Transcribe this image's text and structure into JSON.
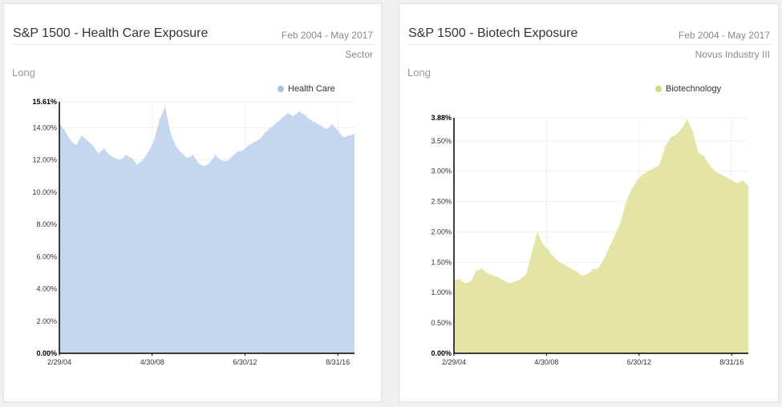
{
  "left_panel": {
    "title": "S&P 1500 - Health Care Exposure",
    "date_range": "Feb 2004 - May 2017",
    "classification": "Sector",
    "side": "Long"
  },
  "right_panel": {
    "title": "S&P 1500 - Biotech Exposure",
    "date_range": "Feb 2004 - May 2017",
    "classification": "Novus Industry III",
    "side": "Long"
  },
  "chart_data": [
    {
      "type": "area",
      "legend_placement": "top-right",
      "grid": true,
      "x_ticks": [
        "2/29/04",
        "4/30/08",
        "6/30/12",
        "8/31/16"
      ],
      "y_ticks": [
        "0.00%",
        "2.00%",
        "4.00%",
        "6.00%",
        "8.00%",
        "10.00%",
        "12.00%",
        "14.00%",
        "15.61%"
      ],
      "ylim": [
        0,
        15.61
      ],
      "xlim": [
        "2004-02",
        "2017-05"
      ],
      "series": [
        {
          "name": "Health Care",
          "color": "#c5d6ef",
          "legend_color": "#a9bfe3",
          "x": [
            "2004-02",
            "2004-05",
            "2004-08",
            "2004-11",
            "2005-02",
            "2005-05",
            "2005-08",
            "2005-11",
            "2006-02",
            "2006-05",
            "2006-08",
            "2006-11",
            "2007-02",
            "2007-05",
            "2007-08",
            "2007-11",
            "2008-02",
            "2008-05",
            "2008-08",
            "2008-11",
            "2009-02",
            "2009-05",
            "2009-08",
            "2009-11",
            "2010-02",
            "2010-05",
            "2010-08",
            "2010-11",
            "2011-02",
            "2011-05",
            "2011-08",
            "2011-11",
            "2012-02",
            "2012-05",
            "2012-08",
            "2012-11",
            "2013-02",
            "2013-05",
            "2013-08",
            "2013-11",
            "2014-02",
            "2014-05",
            "2014-08",
            "2014-11",
            "2015-02",
            "2015-05",
            "2015-08",
            "2015-11",
            "2016-02",
            "2016-05",
            "2016-08",
            "2016-11",
            "2017-02",
            "2017-05"
          ],
          "values": [
            14.3,
            13.8,
            13.2,
            12.9,
            13.5,
            13.2,
            12.9,
            12.4,
            12.7,
            12.3,
            12.1,
            12.0,
            12.3,
            12.1,
            11.7,
            12.0,
            12.5,
            13.2,
            14.5,
            15.3,
            13.6,
            12.8,
            12.4,
            12.1,
            12.3,
            11.8,
            11.6,
            11.8,
            12.3,
            12.0,
            11.9,
            12.2,
            12.5,
            12.6,
            12.9,
            13.1,
            13.3,
            13.7,
            14.0,
            14.3,
            14.6,
            14.9,
            14.7,
            15.0,
            14.8,
            14.5,
            14.3,
            14.1,
            13.9,
            14.2,
            13.8,
            13.4,
            13.5,
            13.6
          ]
        }
      ]
    },
    {
      "type": "area",
      "legend_placement": "top-right",
      "grid": true,
      "x_ticks": [
        "2/29/04",
        "4/30/08",
        "6/30/12",
        "8/31/16"
      ],
      "y_ticks": [
        "0.00%",
        "0.50%",
        "1.00%",
        "1.50%",
        "2.00%",
        "2.50%",
        "3.00%",
        "3.50%",
        "3.88%"
      ],
      "ylim": [
        0,
        3.88
      ],
      "xlim": [
        "2004-02",
        "2017-05"
      ],
      "series": [
        {
          "name": "Biotechnology",
          "color": "#e4e4a6",
          "legend_color": "#d6d68a",
          "x": [
            "2004-02",
            "2004-05",
            "2004-08",
            "2004-11",
            "2005-02",
            "2005-05",
            "2005-08",
            "2005-11",
            "2006-02",
            "2006-05",
            "2006-08",
            "2006-11",
            "2007-02",
            "2007-05",
            "2007-08",
            "2007-11",
            "2008-02",
            "2008-05",
            "2008-08",
            "2008-11",
            "2009-02",
            "2009-05",
            "2009-08",
            "2009-11",
            "2010-02",
            "2010-05",
            "2010-08",
            "2010-11",
            "2011-02",
            "2011-05",
            "2011-08",
            "2011-11",
            "2012-02",
            "2012-05",
            "2012-08",
            "2012-11",
            "2013-02",
            "2013-05",
            "2013-08",
            "2013-11",
            "2014-02",
            "2014-05",
            "2014-08",
            "2014-11",
            "2015-02",
            "2015-05",
            "2015-08",
            "2015-11",
            "2016-02",
            "2016-05",
            "2016-08",
            "2016-11",
            "2017-02",
            "2017-05"
          ],
          "values": [
            1.2,
            1.22,
            1.15,
            1.18,
            1.35,
            1.4,
            1.32,
            1.28,
            1.25,
            1.2,
            1.15,
            1.18,
            1.22,
            1.3,
            1.65,
            2.0,
            1.8,
            1.7,
            1.58,
            1.5,
            1.45,
            1.4,
            1.35,
            1.28,
            1.3,
            1.38,
            1.4,
            1.55,
            1.75,
            1.95,
            2.15,
            2.5,
            2.7,
            2.85,
            2.95,
            3.0,
            3.05,
            3.1,
            3.4,
            3.55,
            3.6,
            3.7,
            3.85,
            3.65,
            3.3,
            3.25,
            3.1,
            3.0,
            2.95,
            2.9,
            2.85,
            2.8,
            2.85,
            2.75
          ]
        }
      ]
    }
  ]
}
